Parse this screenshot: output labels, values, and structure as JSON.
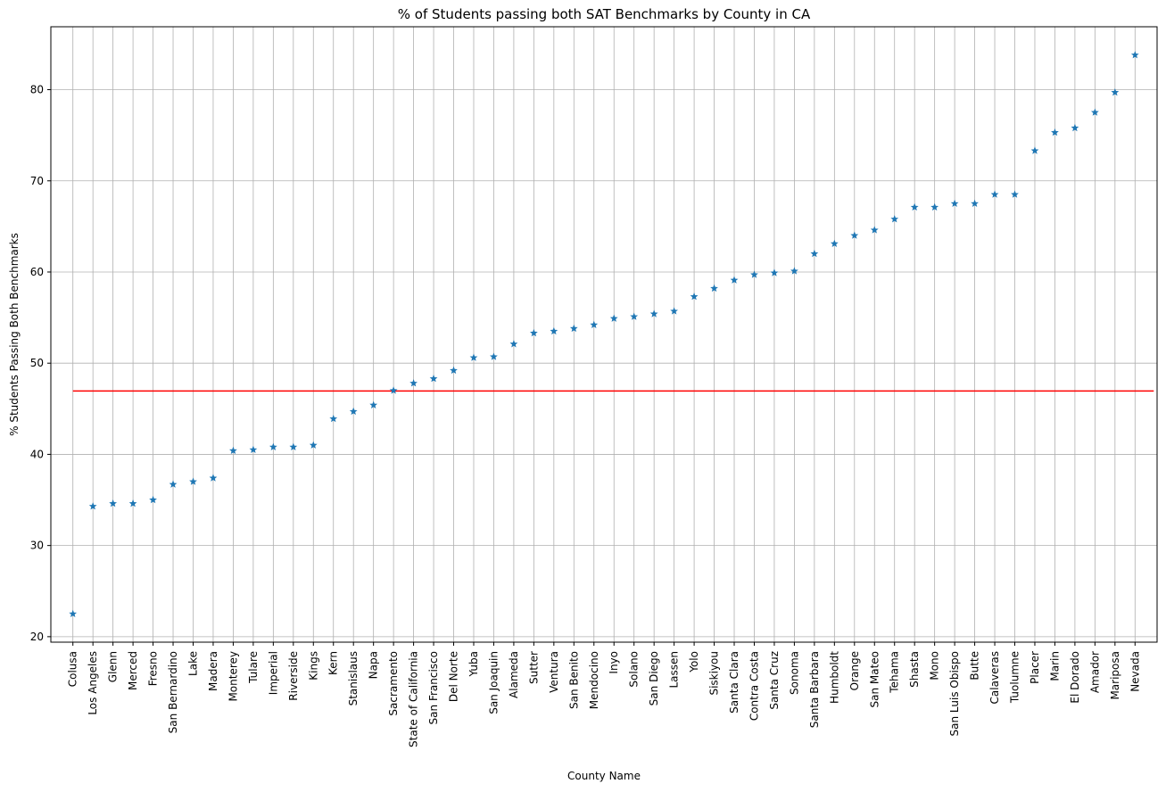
{
  "chart_data": {
    "type": "scatter",
    "title": "% of Students passing both SAT Benchmarks by County in CA",
    "xlabel": "County Name",
    "ylabel": "% Students Passing Both Benchmarks",
    "marker": "star",
    "series_color": "#1f77b4",
    "grid": true,
    "ylim": [
      19.4,
      86.9
    ],
    "yticks": [
      20,
      30,
      40,
      50,
      60,
      70,
      80
    ],
    "categories": [
      "Colusa",
      "Los Angeles",
      "Glenn",
      "Merced",
      "Fresno",
      "San Bernardino",
      "Lake",
      "Madera",
      "Monterey",
      "Tulare",
      "Imperial",
      "Riverside",
      "Kings",
      "Kern",
      "Stanislaus",
      "Napa",
      "Sacramento",
      "State of California",
      "San Francisco",
      "Del Norte",
      "Yuba",
      "San Joaquin",
      "Alameda",
      "Sutter",
      "Ventura",
      "San Benito",
      "Mendocino",
      "Inyo",
      "Solano",
      "San Diego",
      "Lassen",
      "Yolo",
      "Siskiyou",
      "Santa Clara",
      "Contra Costa",
      "Santa Cruz",
      "Sonoma",
      "Santa Barbara",
      "Humboldt",
      "Orange",
      "San Mateo",
      "Tehama",
      "Shasta",
      "Mono",
      "San Luis Obispo",
      "Butte",
      "Calaveras",
      "Tuolumne",
      "Placer",
      "Marin",
      "El Dorado",
      "Amador",
      "Mariposa",
      "Nevada"
    ],
    "values": [
      22.5,
      34.3,
      34.6,
      34.6,
      35.0,
      36.7,
      37.0,
      37.4,
      40.4,
      40.5,
      40.8,
      40.8,
      41.0,
      43.9,
      44.7,
      45.4,
      47.0,
      47.8,
      48.3,
      49.2,
      50.6,
      50.7,
      52.1,
      53.3,
      53.5,
      53.8,
      54.2,
      54.9,
      55.1,
      55.4,
      55.7,
      57.3,
      58.2,
      59.1,
      59.7,
      59.9,
      60.1,
      62.0,
      63.1,
      64.0,
      64.6,
      65.8,
      67.1,
      67.1,
      67.5,
      67.5,
      68.5,
      68.5,
      73.3,
      75.3,
      75.8,
      77.5,
      79.7,
      83.8
    ],
    "reference_line": {
      "value": 46.95,
      "color": "#ff0000"
    }
  }
}
